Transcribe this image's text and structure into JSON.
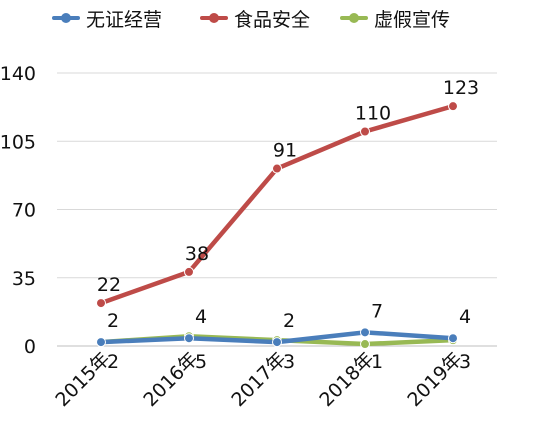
{
  "chart_data": {
    "type": "line",
    "categories": [
      "2015年",
      "2016年",
      "2017年",
      "2018年",
      "2019年"
    ],
    "ylim": [
      0,
      140
    ],
    "yticks": [
      0,
      35,
      70,
      105,
      140
    ],
    "grid": true,
    "legend_position": "top",
    "series": [
      {
        "name": "无证经营",
        "values": [
          2,
          4,
          2,
          7,
          4
        ],
        "color": "#4a7ebb"
      },
      {
        "name": "食品安全",
        "values": [
          22,
          38,
          91,
          110,
          123
        ],
        "color": "#be4b48"
      },
      {
        "name": "虚假宣传",
        "values": [
          2,
          5,
          3,
          1,
          3
        ],
        "color": "#98b954"
      }
    ]
  }
}
